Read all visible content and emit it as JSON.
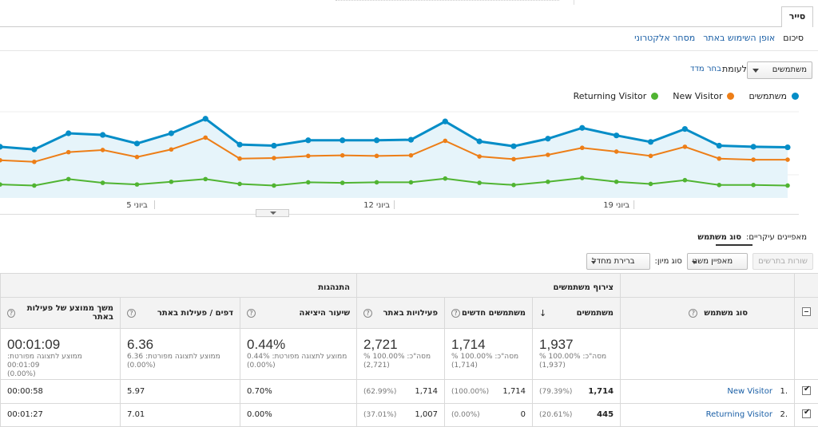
{
  "tabs": {
    "active": "סייר"
  },
  "subtabs": [
    {
      "label": "סיכום",
      "active": true
    },
    {
      "label": "אופן השימוש באתר",
      "active": false
    },
    {
      "label": "מסחר אלקטרוני",
      "active": false
    }
  ],
  "metric_selector": {
    "value": "משתמשים",
    "vs_label": "לעומת",
    "choose_metric": "בחר מדד"
  },
  "legend": [
    {
      "label": "משתמשים",
      "color": "#058dc7"
    },
    {
      "label": "New Visitor",
      "color": "#ed7e17"
    },
    {
      "label": "Returning Visitor",
      "color": "#50b432"
    }
  ],
  "chart_data": {
    "type": "line",
    "x": [
      "1 ביוני",
      "2 ביוני",
      "3 ביוני",
      "4 ביוני",
      "5 ביוני",
      "6 ביוני",
      "7 ביוני",
      "8 ביוני",
      "9 ביוני",
      "10 ביוני",
      "11 ביוני",
      "12 ביוני",
      "13 ביוני",
      "14 ביוני",
      "15 ביוני",
      "16 ביוני",
      "17 ביוני",
      "18 ביוני",
      "19 ביוני",
      "20 ביוני",
      "21 ביוני",
      "22 ביוני",
      "23 ביוני",
      "24 ביוני"
    ],
    "x_tick_labels": [
      "ביוני 5",
      "ביוני 12",
      "ביוני 19"
    ],
    "series": [
      {
        "name": "משתמשים",
        "color": "#058dc7",
        "values": [
          95,
          90,
          120,
          117,
          101,
          120,
          147,
          99,
          97,
          107,
          107,
          107,
          108,
          142,
          105,
          96,
          110,
          130,
          116,
          104,
          128,
          97,
          95,
          94
        ]
      },
      {
        "name": "New Visitor",
        "color": "#ed7e17",
        "values": [
          70,
          67,
          85,
          89,
          76,
          90,
          112,
          73,
          74,
          78,
          79,
          78,
          79,
          106,
          77,
          72,
          80,
          93,
          86,
          78,
          95,
          73,
          71,
          71
        ]
      },
      {
        "name": "Returning Visitor",
        "color": "#50b432",
        "values": [
          25,
          23,
          35,
          28,
          25,
          30,
          35,
          26,
          23,
          29,
          28,
          29,
          29,
          36,
          28,
          24,
          30,
          37,
          30,
          26,
          33,
          24,
          24,
          23
        ]
      }
    ],
    "ylim": [
      0,
      160
    ],
    "grid": true
  },
  "primary_dimension": {
    "label": "מאפיינים עיקריים:",
    "value": "סוג משתמש"
  },
  "controls": {
    "plot_rows": "שורות בתרשים",
    "secondary_dim": "מאפיין משני",
    "sort_label": "סוג מיון:",
    "sort_value": "ברירת מחדל"
  },
  "table": {
    "group_acquisition": "צירוף משתמשים",
    "group_behavior": "התנהגות",
    "dim_header": "סוג משתמש",
    "columns": [
      "משתמשים",
      "משתמשים חדשים",
      "פעילויות באתר",
      "שיעור היציאה",
      "דפים / פעילות באתר",
      "משך ממוצע של פעילות באתר"
    ],
    "totals": [
      {
        "big": "1,937",
        "s1": "% מסה\"כ: 100.00%",
        "s2": "(1,937)"
      },
      {
        "big": "1,714",
        "s1": "% מסה\"כ: 100.00%",
        "s2": "(1,714)"
      },
      {
        "big": "2,721",
        "s1": "% מסה\"כ: 100.00%",
        "s2": "(2,721)"
      },
      {
        "big": "0.44%",
        "s1": "ממוצע לתצוגה מפורטת: 0.44%",
        "s2": "(0.00%)"
      },
      {
        "big": "6.36",
        "s1": "ממוצע לתצוגה מפורטת: 6.36",
        "s2": "(0.00%)"
      },
      {
        "big": "00:01:09",
        "s1": "ממוצע לתצוגה מפורטת: 00:01:09",
        "s2": "(0.00%)"
      }
    ],
    "rows": [
      {
        "index": "1.",
        "name": "New Visitor",
        "users": "1,714",
        "users_pct": "(79.39%)",
        "new_users": "1,714",
        "new_users_pct": "(100.00%)",
        "sessions": "1,714",
        "sessions_pct": "(62.99%)",
        "bounce": "0.70%",
        "pages": "5.97",
        "duration": "00:00:58"
      },
      {
        "index": "2.",
        "name": "Returning Visitor",
        "users": "445",
        "users_pct": "(20.61%)",
        "new_users": "0",
        "new_users_pct": "(0.00%)",
        "sessions": "1,007",
        "sessions_pct": "(37.01%)",
        "bounce": "0.00%",
        "pages": "7.01",
        "duration": "00:01:27"
      }
    ]
  }
}
